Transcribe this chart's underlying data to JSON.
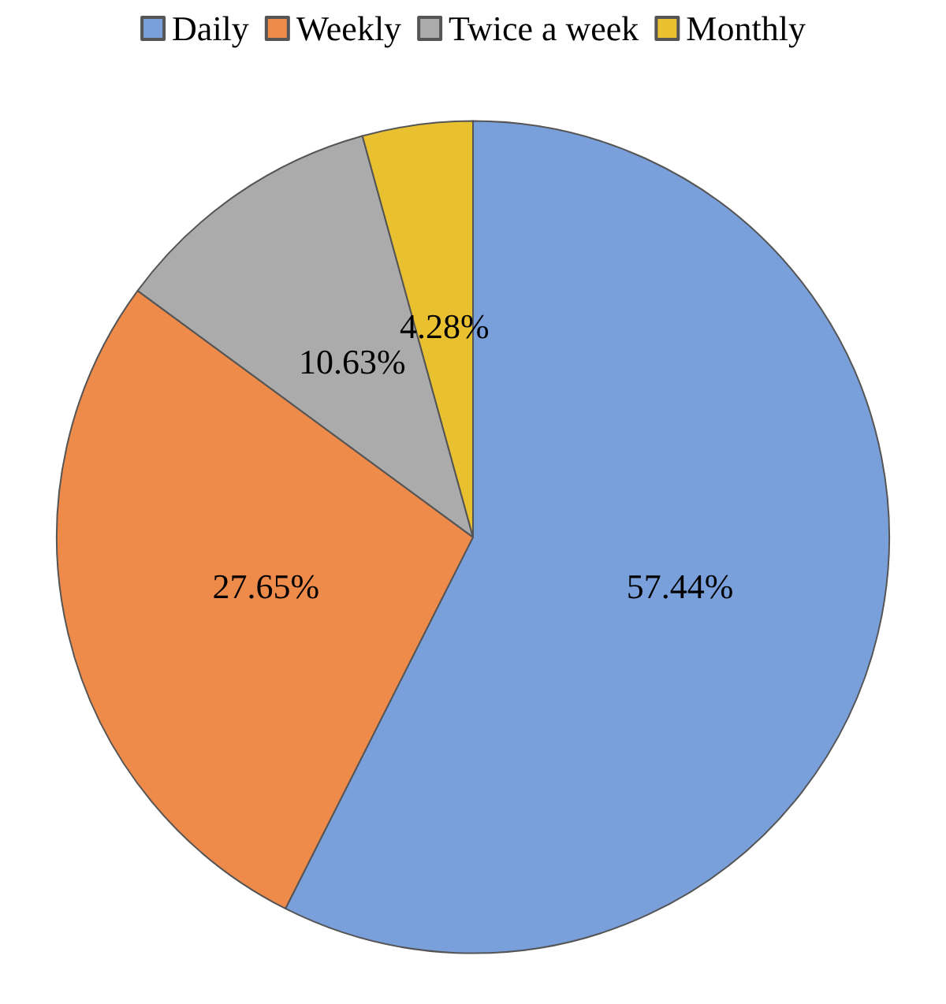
{
  "chart_data": {
    "type": "pie",
    "categories": [
      "Daily",
      "Weekly",
      "Twice a week",
      "Monthly"
    ],
    "values": [
      57.44,
      27.65,
      10.63,
      4.28
    ],
    "value_labels": [
      "57.44%",
      "27.65%",
      "10.63%",
      "4.28%"
    ],
    "colors": [
      "#7aa0dc",
      "#ee8a4a",
      "#ababab",
      "#e8c030"
    ],
    "legend": "top"
  }
}
